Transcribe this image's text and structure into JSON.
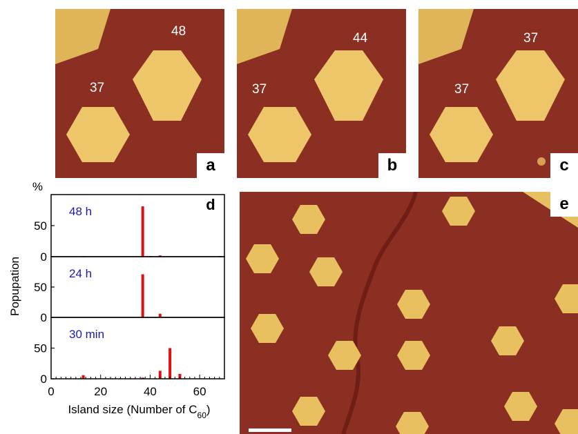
{
  "panels": {
    "a": {
      "label": "a",
      "counts": [
        "48",
        "37"
      ]
    },
    "b": {
      "label": "b",
      "counts": [
        "44",
        "37"
      ]
    },
    "c": {
      "label": "c",
      "counts": [
        "37",
        "37"
      ]
    },
    "e": {
      "label": "e"
    }
  },
  "colors": {
    "substrate": "#8a2f22",
    "island": "#e8c060",
    "bar": "#dd1111",
    "time_label": "#1a1aa8"
  },
  "chart_data": {
    "type": "bar",
    "panel_label": "d",
    "y_unit": "%",
    "ylabel": "Popupation",
    "xlabel": "Island size (Number of C",
    "xlabel_sub": "60",
    "xlabel_end": ")",
    "xlim": [
      0,
      70
    ],
    "ylim": [
      0,
      100
    ],
    "x_ticks": [
      "0",
      "20",
      "40",
      "60"
    ],
    "y_ticks": [
      "0",
      "50"
    ],
    "series": [
      {
        "name": "48 h",
        "x": [
          13,
          37,
          40,
          44,
          68
        ],
        "values": [
          1,
          81,
          1,
          2,
          1
        ]
      },
      {
        "name": "24 h",
        "x": [
          37,
          44
        ],
        "values": [
          71,
          6
        ]
      },
      {
        "name": "30 min",
        "x": [
          13,
          37,
          44,
          48,
          52
        ],
        "values": [
          6,
          2,
          13,
          50,
          8
        ]
      }
    ]
  }
}
